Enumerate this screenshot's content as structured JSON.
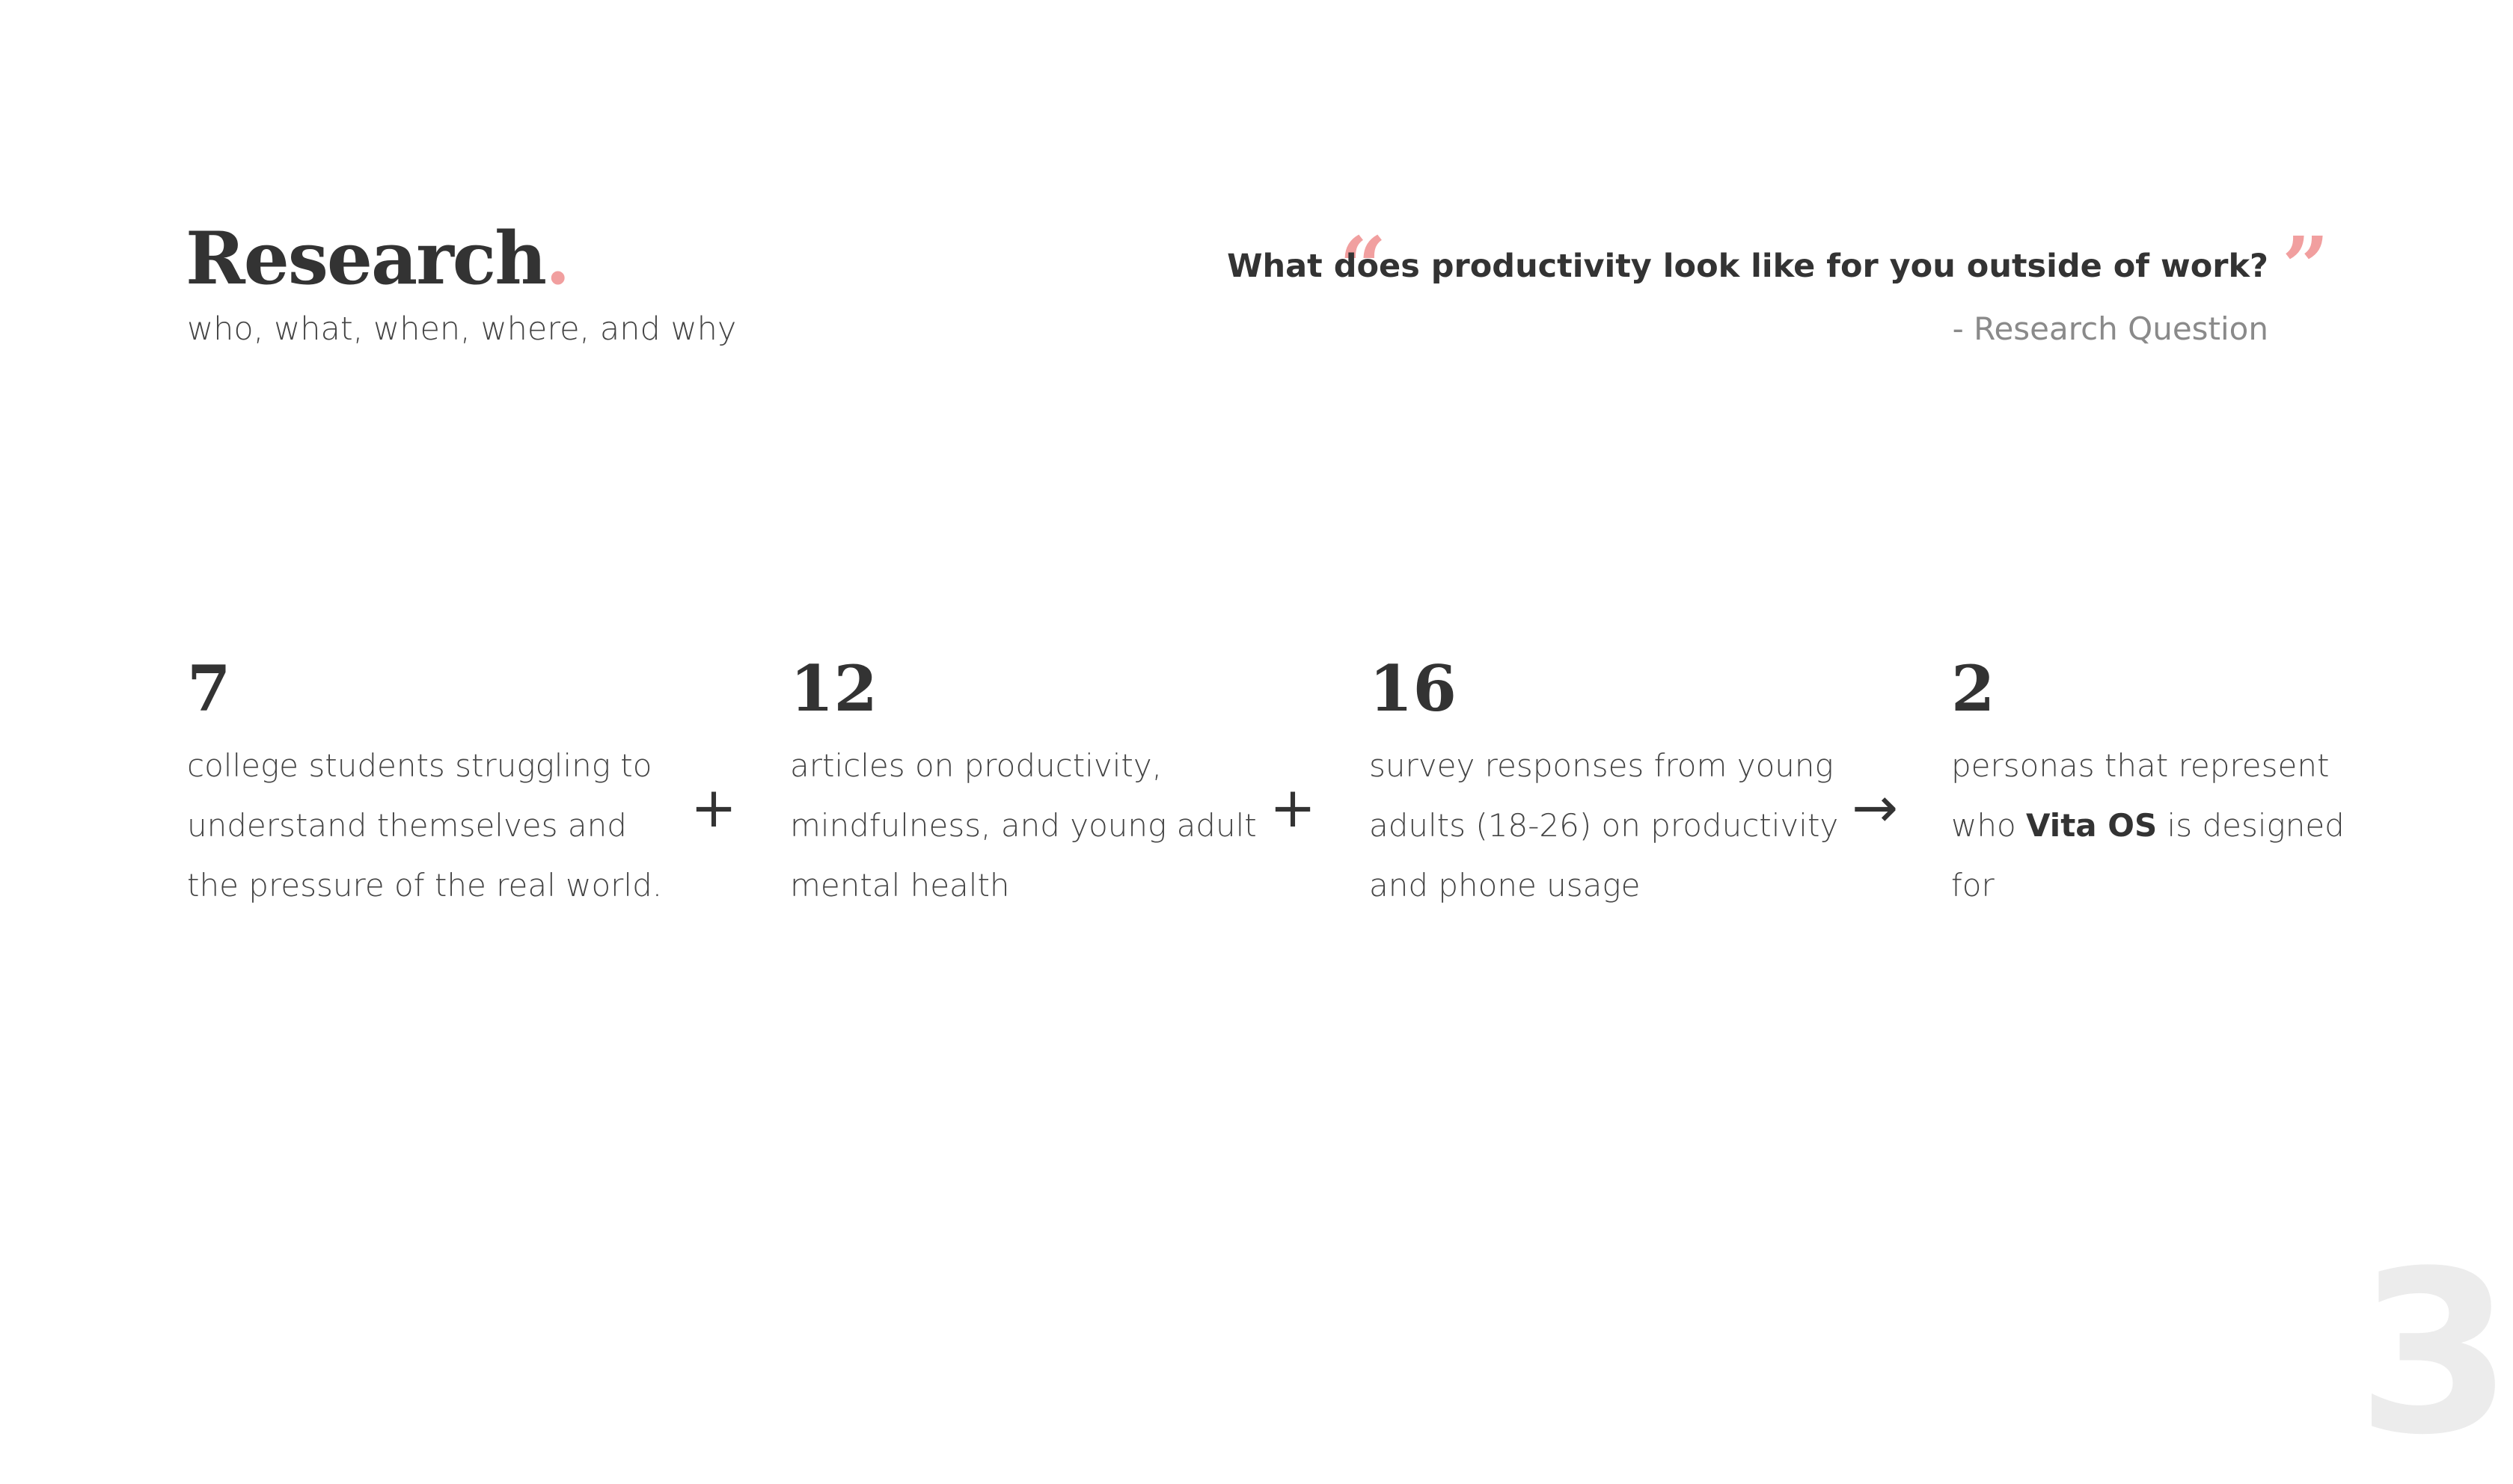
{
  "header": {
    "title": "Research",
    "title_dot": ".",
    "subtitle": "who, what, when, where, and why"
  },
  "quote": {
    "open_mark": "“",
    "close_mark": "”",
    "question": "What does productivity look like for you outside of work?",
    "attribution": "- Research Question"
  },
  "stats": [
    {
      "number": "7",
      "lines": [
        "college students struggling to",
        "understand themselves and",
        "the pressure of the real world."
      ]
    },
    {
      "number": "12",
      "lines": [
        "articles on productivity,",
        "mindfulness, and young adult",
        "mental health"
      ]
    },
    {
      "number": "16",
      "lines": [
        "survey responses from young",
        "adults (18-26) on productivity",
        "and phone usage"
      ]
    },
    {
      "number": "2",
      "line1": "personas that represent",
      "line2_pre": "who ",
      "line2_bold": "Vita OS",
      "line2_post": " is designed",
      "line3": "for"
    }
  ],
  "operators": [
    "+",
    "+",
    "→"
  ],
  "page_number": "3",
  "colors": {
    "accent": "#f19f9f",
    "text": "#333333",
    "muted": "#8a8a8a"
  }
}
